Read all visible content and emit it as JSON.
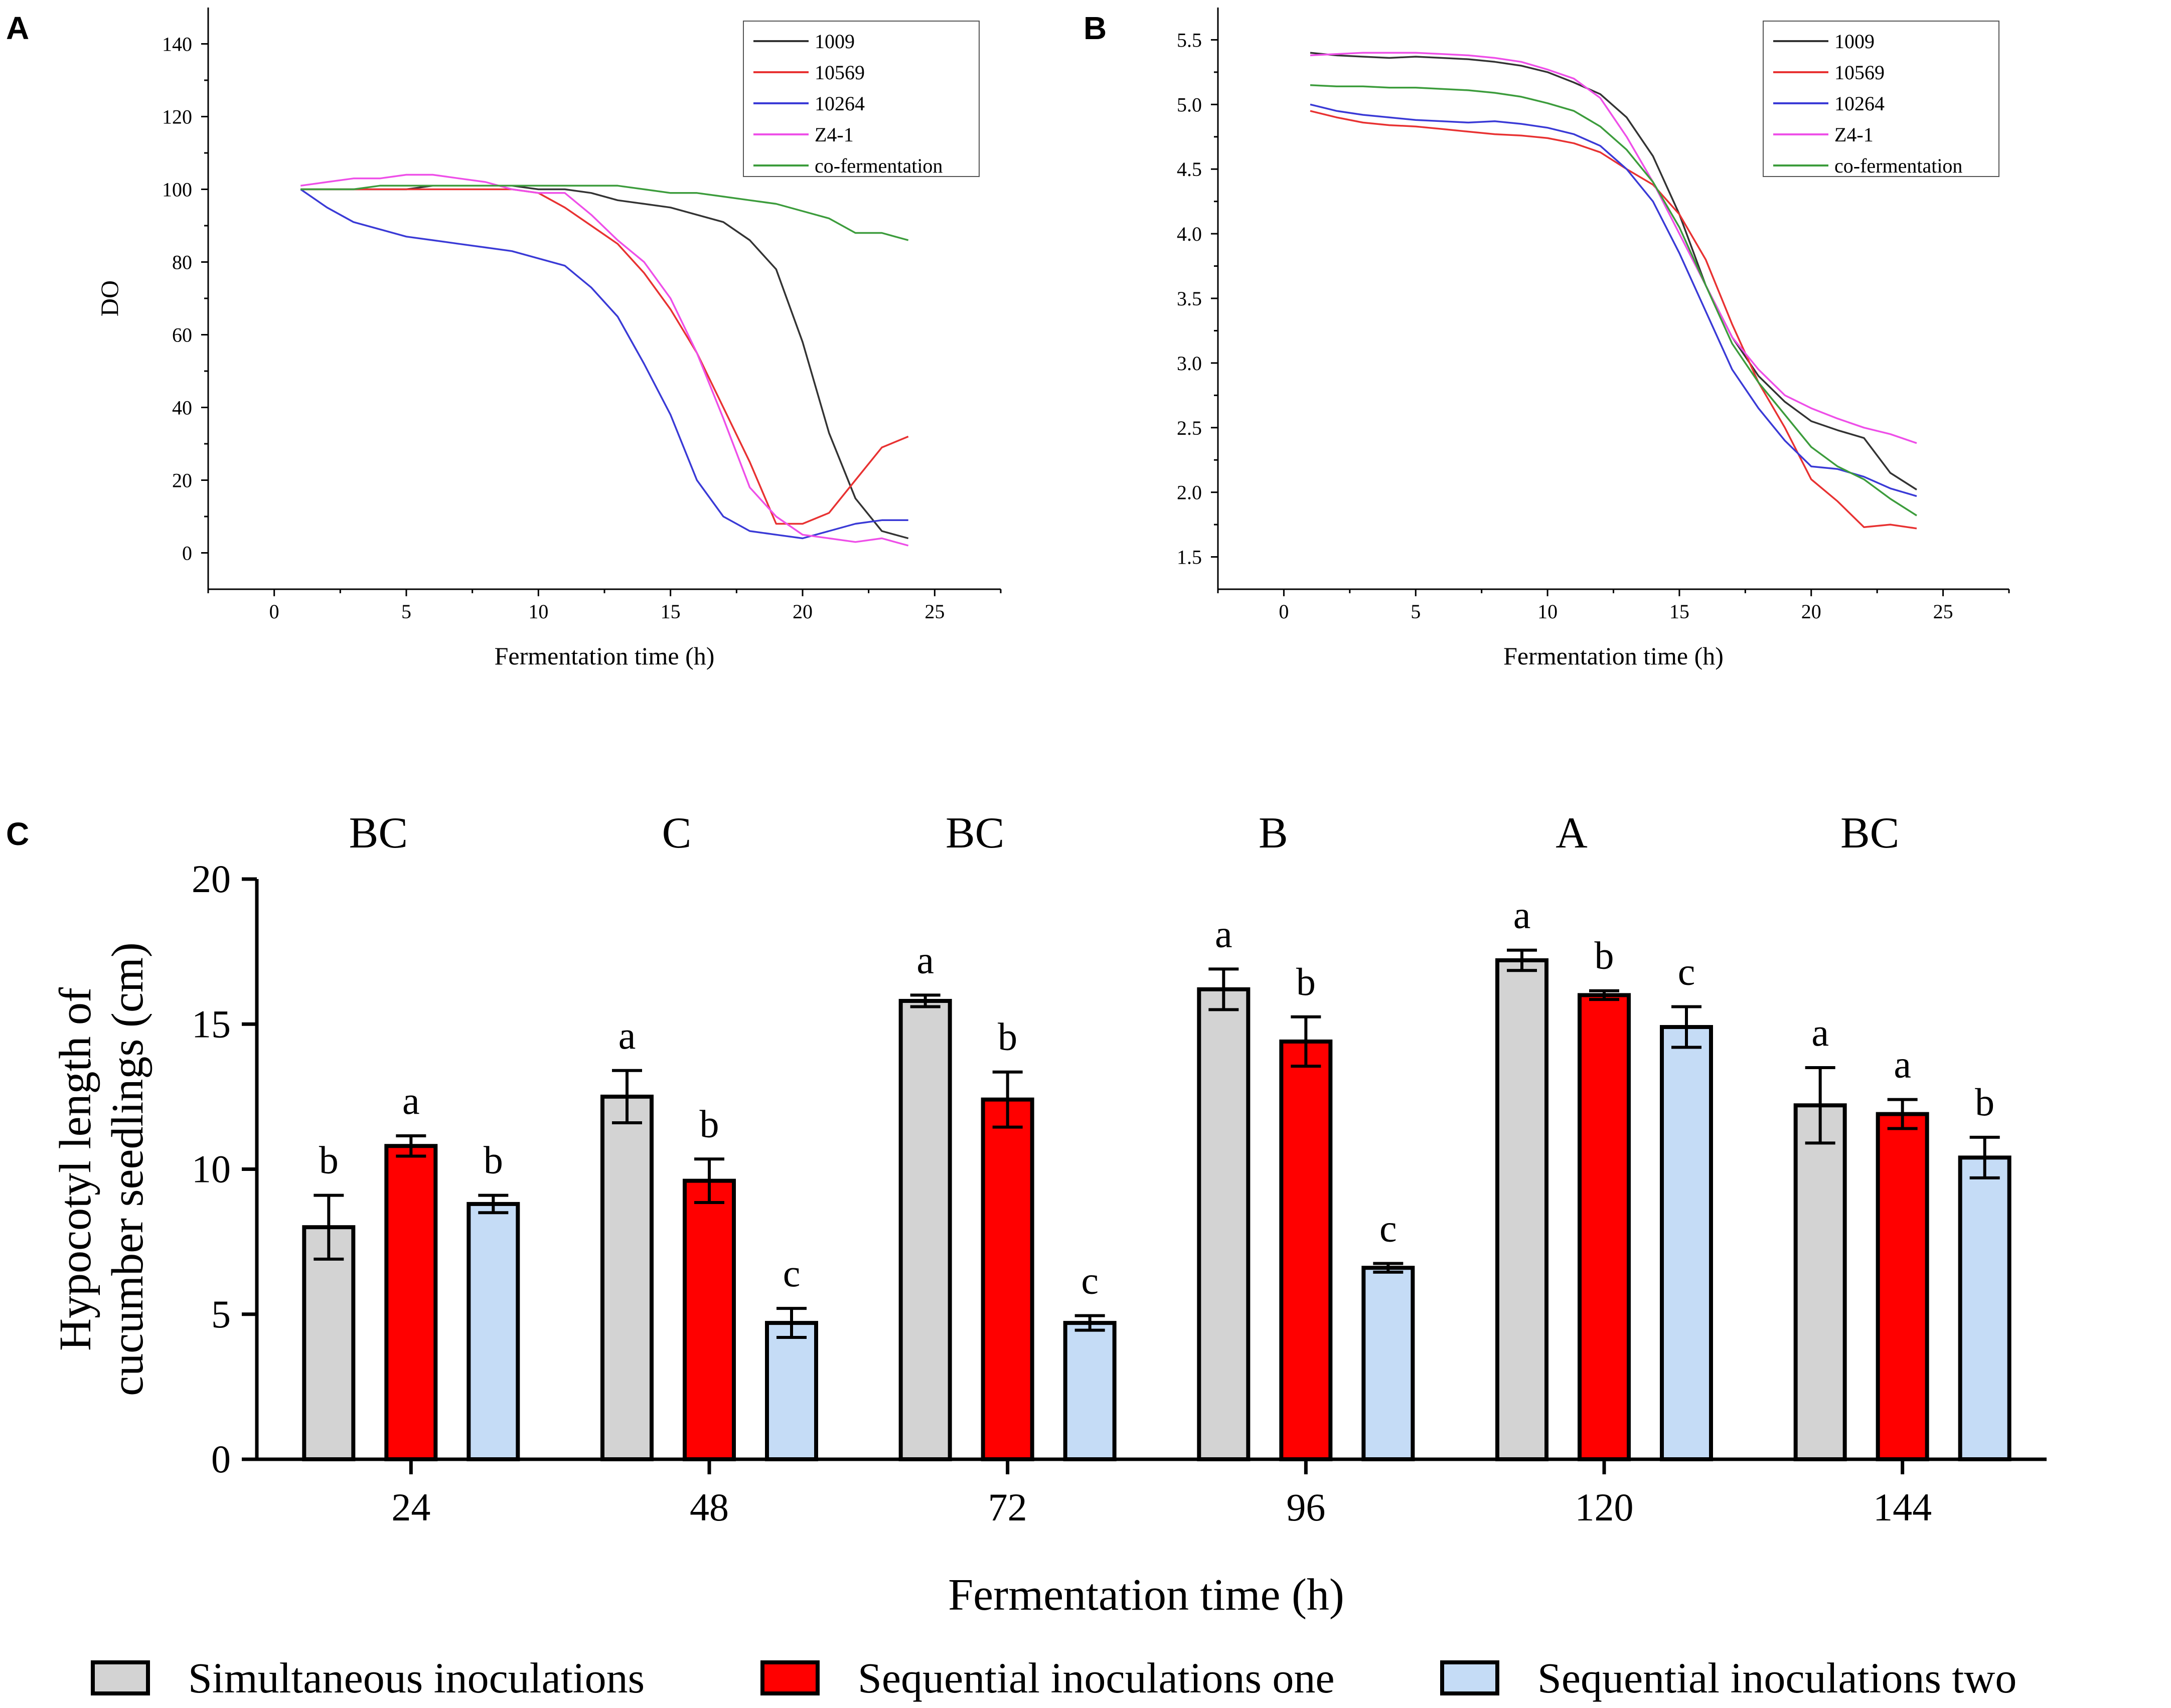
{
  "chart_data": [
    {
      "panel": "A",
      "type": "line",
      "xlabel": "Fermentation time (h)",
      "ylabel": "DO",
      "xlim": [
        -2.5,
        27.5
      ],
      "ylim": [
        -10,
        150
      ],
      "xticks": [
        0,
        5,
        10,
        15,
        20,
        25
      ],
      "yticks": [
        0,
        20,
        40,
        60,
        80,
        100,
        120,
        140
      ],
      "legend_position": "top-right",
      "series": [
        {
          "name": "1009",
          "color": "#333333",
          "x": [
            1,
            2,
            3,
            4,
            5,
            6,
            7,
            8,
            9,
            10,
            11,
            12,
            13,
            14,
            15,
            16,
            17,
            18,
            19,
            20,
            21,
            22,
            23,
            24
          ],
          "values": [
            100,
            100,
            100,
            100,
            100,
            101,
            101,
            101,
            101,
            100,
            100,
            99,
            97,
            96,
            95,
            93,
            91,
            86,
            78,
            58,
            33,
            15,
            6,
            4
          ]
        },
        {
          "name": "10569",
          "color": "#e83232",
          "x": [
            1,
            2,
            3,
            4,
            5,
            6,
            7,
            8,
            9,
            10,
            11,
            12,
            13,
            14,
            15,
            16,
            17,
            18,
            19,
            20,
            21,
            22,
            23,
            24
          ],
          "values": [
            100,
            100,
            100,
            100,
            100,
            100,
            100,
            100,
            100,
            99,
            95,
            90,
            85,
            77,
            67,
            55,
            40,
            25,
            8,
            8,
            11,
            20,
            29,
            32
          ]
        },
        {
          "name": "10264",
          "color": "#3a3ad6",
          "x": [
            1,
            2,
            3,
            4,
            5,
            6,
            7,
            8,
            9,
            10,
            11,
            12,
            13,
            14,
            15,
            16,
            17,
            18,
            19,
            20,
            21,
            22,
            23,
            24
          ],
          "values": [
            100,
            95,
            91,
            89,
            87,
            86,
            85,
            84,
            83,
            81,
            79,
            73,
            65,
            52,
            38,
            20,
            10,
            6,
            5,
            4,
            6,
            8,
            9,
            9
          ]
        },
        {
          "name": "Z4-1",
          "color": "#ee4fe8",
          "x": [
            1,
            2,
            3,
            4,
            5,
            6,
            7,
            8,
            9,
            10,
            11,
            12,
            13,
            14,
            15,
            16,
            17,
            18,
            19,
            20,
            21,
            22,
            23,
            24
          ],
          "values": [
            101,
            102,
            103,
            103,
            104,
            104,
            103,
            102,
            100,
            99,
            99,
            93,
            86,
            80,
            70,
            55,
            37,
            18,
            10,
            5,
            4,
            3,
            4,
            2
          ]
        },
        {
          "name": "co-fermentation",
          "color": "#3c9c3c",
          "x": [
            1,
            2,
            3,
            4,
            5,
            6,
            7,
            8,
            9,
            10,
            11,
            12,
            13,
            14,
            15,
            16,
            17,
            18,
            19,
            20,
            21,
            22,
            23,
            24
          ],
          "values": [
            100,
            100,
            100,
            101,
            101,
            101,
            101,
            101,
            101,
            101,
            101,
            101,
            101,
            100,
            99,
            99,
            98,
            97,
            96,
            94,
            92,
            88,
            88,
            86
          ]
        }
      ]
    },
    {
      "panel": "B",
      "type": "line",
      "xlabel": "Fermentation time (h)",
      "ylabel": "",
      "xlim": [
        -2.5,
        27.5
      ],
      "ylim": [
        1.25,
        5.75
      ],
      "xticks": [
        0,
        5,
        10,
        15,
        20,
        25
      ],
      "yticks": [
        1.5,
        2.0,
        2.5,
        3.0,
        3.5,
        4.0,
        4.5,
        5.0,
        5.5
      ],
      "legend_position": "top-right",
      "series": [
        {
          "name": "1009",
          "color": "#333333",
          "x": [
            1,
            2,
            3,
            4,
            5,
            6,
            7,
            8,
            9,
            10,
            11,
            12,
            13,
            14,
            15,
            16,
            17,
            18,
            19,
            20,
            21,
            22,
            23,
            24
          ],
          "values": [
            5.4,
            5.38,
            5.37,
            5.36,
            5.37,
            5.36,
            5.35,
            5.33,
            5.3,
            5.25,
            5.17,
            5.08,
            4.9,
            4.6,
            4.15,
            3.6,
            3.2,
            2.9,
            2.7,
            2.55,
            2.48,
            2.42,
            2.15,
            2.02
          ]
        },
        {
          "name": "10569",
          "color": "#e83232",
          "x": [
            1,
            2,
            3,
            4,
            5,
            6,
            7,
            8,
            9,
            10,
            11,
            12,
            13,
            14,
            15,
            16,
            17,
            18,
            19,
            20,
            21,
            22,
            23,
            24
          ],
          "values": [
            4.95,
            4.9,
            4.86,
            4.84,
            4.83,
            4.81,
            4.79,
            4.77,
            4.76,
            4.74,
            4.7,
            4.63,
            4.5,
            4.38,
            4.15,
            3.8,
            3.3,
            2.85,
            2.5,
            2.1,
            1.93,
            1.73,
            1.75,
            1.72
          ]
        },
        {
          "name": "10264",
          "color": "#3a3ad6",
          "x": [
            1,
            2,
            3,
            4,
            5,
            6,
            7,
            8,
            9,
            10,
            11,
            12,
            13,
            14,
            15,
            16,
            17,
            18,
            19,
            20,
            21,
            22,
            23,
            24
          ],
          "values": [
            5.0,
            4.95,
            4.92,
            4.9,
            4.88,
            4.87,
            4.86,
            4.87,
            4.85,
            4.82,
            4.77,
            4.68,
            4.5,
            4.25,
            3.85,
            3.4,
            2.95,
            2.65,
            2.4,
            2.2,
            2.18,
            2.12,
            2.03,
            1.97
          ]
        },
        {
          "name": "Z4-1",
          "color": "#ee4fe8",
          "x": [
            1,
            2,
            3,
            4,
            5,
            6,
            7,
            8,
            9,
            10,
            11,
            12,
            13,
            14,
            15,
            16,
            17,
            18,
            19,
            20,
            21,
            22,
            23,
            24
          ],
          "values": [
            5.38,
            5.39,
            5.4,
            5.4,
            5.4,
            5.39,
            5.38,
            5.36,
            5.33,
            5.27,
            5.2,
            5.05,
            4.75,
            4.4,
            4.0,
            3.6,
            3.2,
            2.95,
            2.75,
            2.65,
            2.57,
            2.5,
            2.45,
            2.38
          ]
        },
        {
          "name": "co-fermentation",
          "color": "#3c9c3c",
          "x": [
            1,
            2,
            3,
            4,
            5,
            6,
            7,
            8,
            9,
            10,
            11,
            12,
            13,
            14,
            15,
            16,
            17,
            18,
            19,
            20,
            21,
            22,
            23,
            24
          ],
          "values": [
            5.15,
            5.14,
            5.14,
            5.13,
            5.13,
            5.12,
            5.11,
            5.09,
            5.06,
            5.01,
            4.95,
            4.83,
            4.65,
            4.4,
            4.05,
            3.6,
            3.15,
            2.85,
            2.6,
            2.35,
            2.2,
            2.1,
            1.95,
            1.82
          ]
        }
      ]
    },
    {
      "panel": "C",
      "type": "bar",
      "xlabel": "Fermentation time (h)",
      "ylabel": "Hypocotyl length of cucumber seedlings (cm)",
      "ylabel_lines": [
        "Hypocotyl length of",
        "cucumber seedlings (cm)"
      ],
      "ylim": [
        0,
        20
      ],
      "yticks": [
        0,
        5,
        10,
        15,
        20
      ],
      "legend_position": "bottom",
      "categories": [
        "24",
        "48",
        "72",
        "96",
        "120",
        "144"
      ],
      "group_letters": [
        "BC",
        "C",
        "BC",
        "B",
        "A",
        "BC"
      ],
      "series": [
        {
          "name": "Simultaneous inoculations",
          "color": "#d3d3d3",
          "values": [
            8.0,
            12.5,
            15.8,
            16.2,
            17.2,
            12.2
          ],
          "errors": [
            1.1,
            0.9,
            0.2,
            0.7,
            0.35,
            1.3
          ],
          "letters": [
            "b",
            "a",
            "a",
            "a",
            "a",
            "a"
          ]
        },
        {
          "name": "Sequential inoculations one",
          "color": "#ff0000",
          "values": [
            10.8,
            9.6,
            12.4,
            14.4,
            16.0,
            11.9
          ],
          "errors": [
            0.35,
            0.75,
            0.95,
            0.85,
            0.15,
            0.5
          ],
          "letters": [
            "a",
            "b",
            "b",
            "b",
            "b",
            "a"
          ]
        },
        {
          "name": "Sequential inoculations two",
          "color": "#c5dcf6",
          "values": [
            8.8,
            4.7,
            4.7,
            6.6,
            14.9,
            10.4
          ],
          "errors": [
            0.3,
            0.5,
            0.25,
            0.15,
            0.7,
            0.7
          ],
          "letters": [
            "b",
            "c",
            "c",
            "c",
            "c",
            "b"
          ]
        }
      ]
    }
  ]
}
